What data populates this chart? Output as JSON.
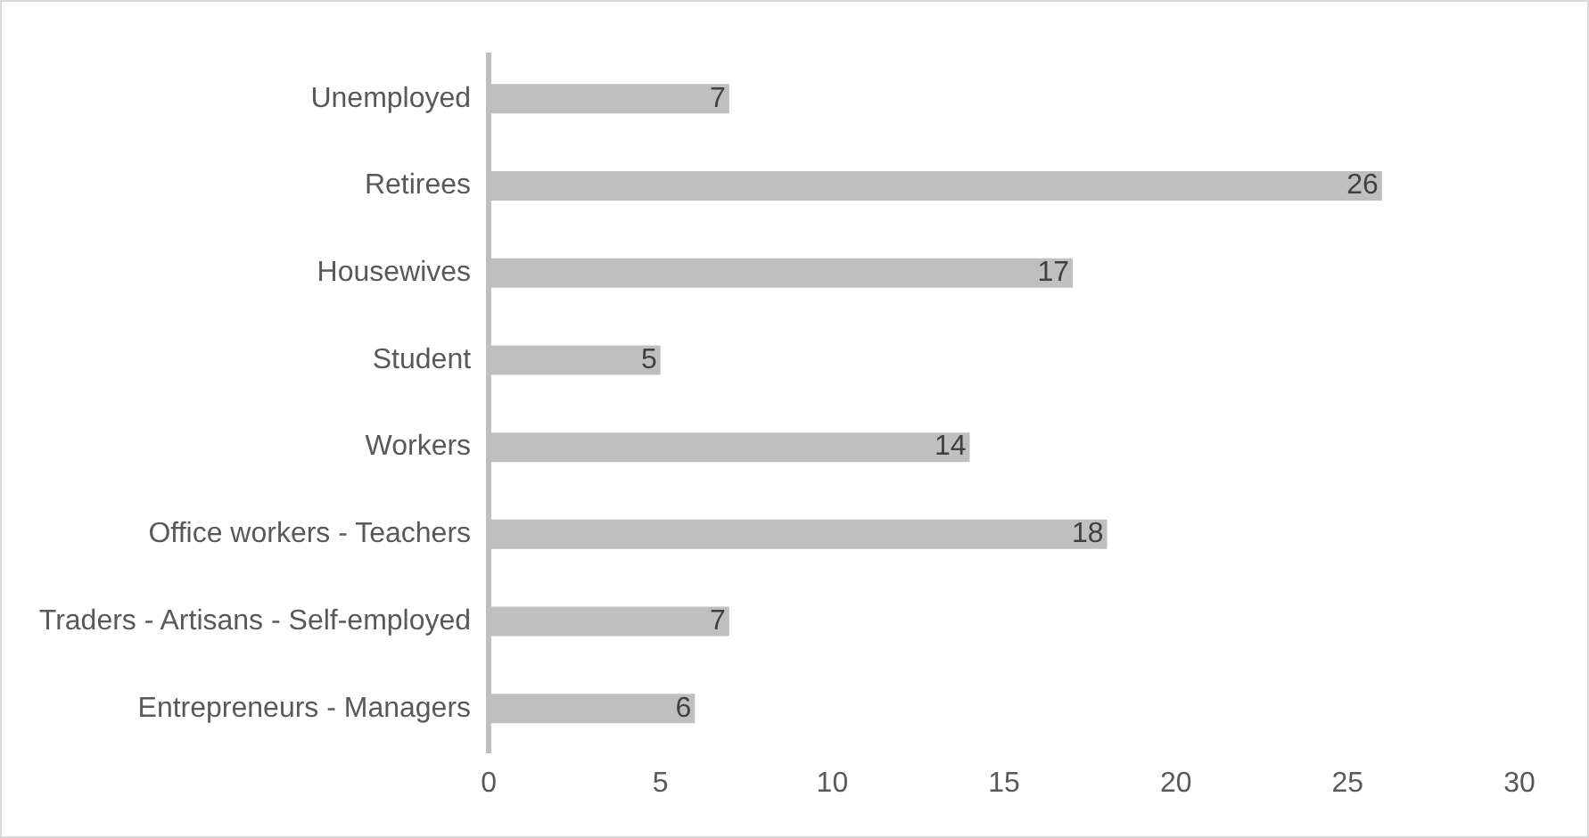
{
  "chart_data": {
    "type": "bar",
    "orientation": "horizontal",
    "categories": [
      "Unemployed",
      "Retirees",
      "Housewives",
      "Student",
      "Workers",
      "Office workers - Teachers",
      "Traders - Artisans - Self-employed",
      "Entrepreneurs - Managers"
    ],
    "values": [
      7,
      26,
      17,
      5,
      14,
      18,
      7,
      6
    ],
    "color": "#bfbfbf",
    "xlim": [
      0,
      30
    ],
    "xticks": [
      0,
      5,
      10,
      15,
      20,
      25,
      30
    ],
    "grid": false,
    "legend": false,
    "data_labels": true
  }
}
